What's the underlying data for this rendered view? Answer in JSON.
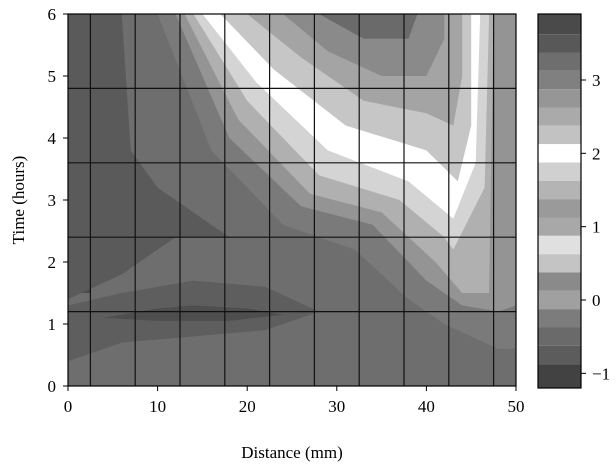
{
  "chart_data": {
    "type": "heatmap",
    "title": "",
    "xlabel": "Distance (mm)",
    "ylabel": "Time (hours)",
    "xlim": [
      0,
      50
    ],
    "ylim": [
      0,
      6
    ],
    "x_ticks": [
      "0",
      "10",
      "20",
      "30",
      "40",
      "50"
    ],
    "y_ticks": [
      "0",
      "1",
      "2",
      "3",
      "4",
      "5",
      "6"
    ],
    "grid": true,
    "grid_x": [
      2.5,
      7.5,
      12.5,
      17.5,
      22.5,
      27.5,
      32.5,
      37.5,
      42.5,
      47.5
    ],
    "grid_y": [
      1.2,
      2.4,
      3.6,
      4.8
    ],
    "colorbar": {
      "ticks": [
        "−1",
        "0",
        "1",
        "2",
        "3"
      ],
      "tick_values": [
        -1,
        0,
        1,
        2,
        3
      ],
      "range": [
        -1.2,
        3.9
      ],
      "levels": [
        {
          "value": 3.75,
          "color": "#4a4a4a"
        },
        {
          "value": 3.5,
          "color": "#585858"
        },
        {
          "value": 3.25,
          "color": "#6e6e6e"
        },
        {
          "value": 3.0,
          "color": "#808080"
        },
        {
          "value": 2.75,
          "color": "#969696"
        },
        {
          "value": 2.5,
          "color": "#aaaaaa"
        },
        {
          "value": 2.25,
          "color": "#c2c2c2"
        },
        {
          "value": 2.0,
          "color": "#ffffff"
        },
        {
          "value": 1.75,
          "color": "#d0d0d0"
        },
        {
          "value": 1.5,
          "color": "#b4b4b4"
        },
        {
          "value": 1.25,
          "color": "#9a9a9a"
        },
        {
          "value": 1.0,
          "color": "#a8a8a8"
        },
        {
          "value": 0.75,
          "color": "#e0e0e0"
        },
        {
          "value": 0.5,
          "color": "#c4c4c4"
        },
        {
          "value": 0.25,
          "color": "#8a8a8a"
        },
        {
          "value": 0.0,
          "color": "#a0a0a0"
        },
        {
          "value": -0.25,
          "color": "#7c7c7c"
        },
        {
          "value": -0.5,
          "color": "#6a6a6a"
        },
        {
          "value": -0.75,
          "color": "#5c5c5c"
        },
        {
          "value": -1.0,
          "color": "#424242"
        }
      ]
    },
    "contours": [
      {
        "level": 0.0,
        "color": "#6e6e6e",
        "points": [
          [
            0,
            0
          ],
          [
            50,
            0
          ],
          [
            50,
            6
          ],
          [
            0,
            6
          ]
        ]
      },
      {
        "level": 0.4,
        "color": "#7a7a7a",
        "points": [
          [
            10,
            6
          ],
          [
            16,
            3.8
          ],
          [
            24,
            2.6
          ],
          [
            32,
            2.2
          ],
          [
            38,
            1.4
          ],
          [
            42,
            1.0
          ],
          [
            48,
            0.6
          ],
          [
            50,
            0.6
          ],
          [
            50,
            6
          ]
        ]
      },
      {
        "level": 0.9,
        "color": "#949494",
        "points": [
          [
            12,
            6
          ],
          [
            18,
            4.0
          ],
          [
            26,
            2.9
          ],
          [
            34,
            2.6
          ],
          [
            40,
            1.7
          ],
          [
            44,
            1.3
          ],
          [
            48,
            1.2
          ],
          [
            50,
            1.3
          ],
          [
            50,
            6
          ]
        ]
      },
      {
        "level": 1.4,
        "color": "#b0b0b0",
        "points": [
          [
            13,
            6
          ],
          [
            19,
            4.3
          ],
          [
            27,
            3.1
          ],
          [
            35,
            2.8
          ],
          [
            41,
            2.0
          ],
          [
            44,
            1.5
          ],
          [
            47,
            1.5
          ],
          [
            47.5,
            6
          ]
        ]
      },
      {
        "level": 1.8,
        "color": "#d4d4d4",
        "points": [
          [
            14,
            6
          ],
          [
            20,
            4.6
          ],
          [
            28,
            3.4
          ],
          [
            37,
            3.0
          ],
          [
            42,
            2.4
          ],
          [
            43,
            2.2
          ],
          [
            46.5,
            3.2
          ],
          [
            47,
            6
          ]
        ]
      },
      {
        "level": 2.0,
        "color": "#ffffff",
        "points": [
          [
            15,
            6
          ],
          [
            21,
            4.9
          ],
          [
            29,
            3.8
          ],
          [
            38,
            3.3
          ],
          [
            43,
            2.7
          ],
          [
            45.5,
            3.6
          ],
          [
            46,
            6
          ]
        ]
      },
      {
        "level": 2.3,
        "color": "#c6c6c6",
        "points": [
          [
            17,
            6
          ],
          [
            23,
            5.1
          ],
          [
            31,
            4.2
          ],
          [
            40,
            3.8
          ],
          [
            43.5,
            3.3
          ],
          [
            45,
            4.2
          ],
          [
            45,
            6
          ]
        ]
      },
      {
        "level": 2.7,
        "color": "#a4a4a4",
        "points": [
          [
            20,
            6
          ],
          [
            26,
            5.3
          ],
          [
            33,
            4.6
          ],
          [
            40,
            4.4
          ],
          [
            43,
            4.2
          ],
          [
            44,
            5.0
          ],
          [
            44,
            6
          ]
        ]
      },
      {
        "level": 3.1,
        "color": "#8a8a8a",
        "points": [
          [
            24,
            6
          ],
          [
            29,
            5.4
          ],
          [
            35,
            5.0
          ],
          [
            40,
            5.0
          ],
          [
            42,
            5.6
          ],
          [
            42,
            6
          ]
        ]
      },
      {
        "level": 3.5,
        "color": "#6a6a6a",
        "points": [
          [
            28,
            6
          ],
          [
            33,
            5.6
          ],
          [
            38,
            5.6
          ],
          [
            39,
            6
          ]
        ]
      },
      {
        "level": -0.4,
        "color": "#5e5e5e",
        "points": [
          [
            0,
            0.4
          ],
          [
            0,
            1.3
          ],
          [
            6,
            1.5
          ],
          [
            14,
            1.7
          ],
          [
            22,
            1.6
          ],
          [
            28,
            1.2
          ],
          [
            22,
            0.9
          ],
          [
            14,
            0.8
          ],
          [
            6,
            0.7
          ]
        ]
      },
      {
        "level": -0.8,
        "color": "#4e4e4e",
        "points": [
          [
            4,
            1.1
          ],
          [
            10,
            1.25
          ],
          [
            14,
            1.3
          ],
          [
            20,
            1.25
          ],
          [
            24,
            1.15
          ],
          [
            18,
            1.05
          ],
          [
            10,
            1.05
          ]
        ]
      },
      {
        "level": -0.6,
        "color": "#4c4c4c",
        "points": [
          [
            1.5,
            1.5
          ],
          [
            2.5,
            1.5
          ],
          [
            3.2,
            4.5
          ],
          [
            3.2,
            6
          ],
          [
            1.5,
            6
          ],
          [
            1.8,
            3.5
          ]
        ]
      },
      {
        "level": 0.2,
        "color": "#5a5a5a",
        "points": [
          [
            0,
            1.4
          ],
          [
            6,
            1.8
          ],
          [
            12,
            2.4
          ],
          [
            18,
            2.4
          ],
          [
            10,
            3.2
          ],
          [
            7,
            3.8
          ],
          [
            6,
            6
          ],
          [
            0,
            6
          ]
        ]
      }
    ]
  }
}
